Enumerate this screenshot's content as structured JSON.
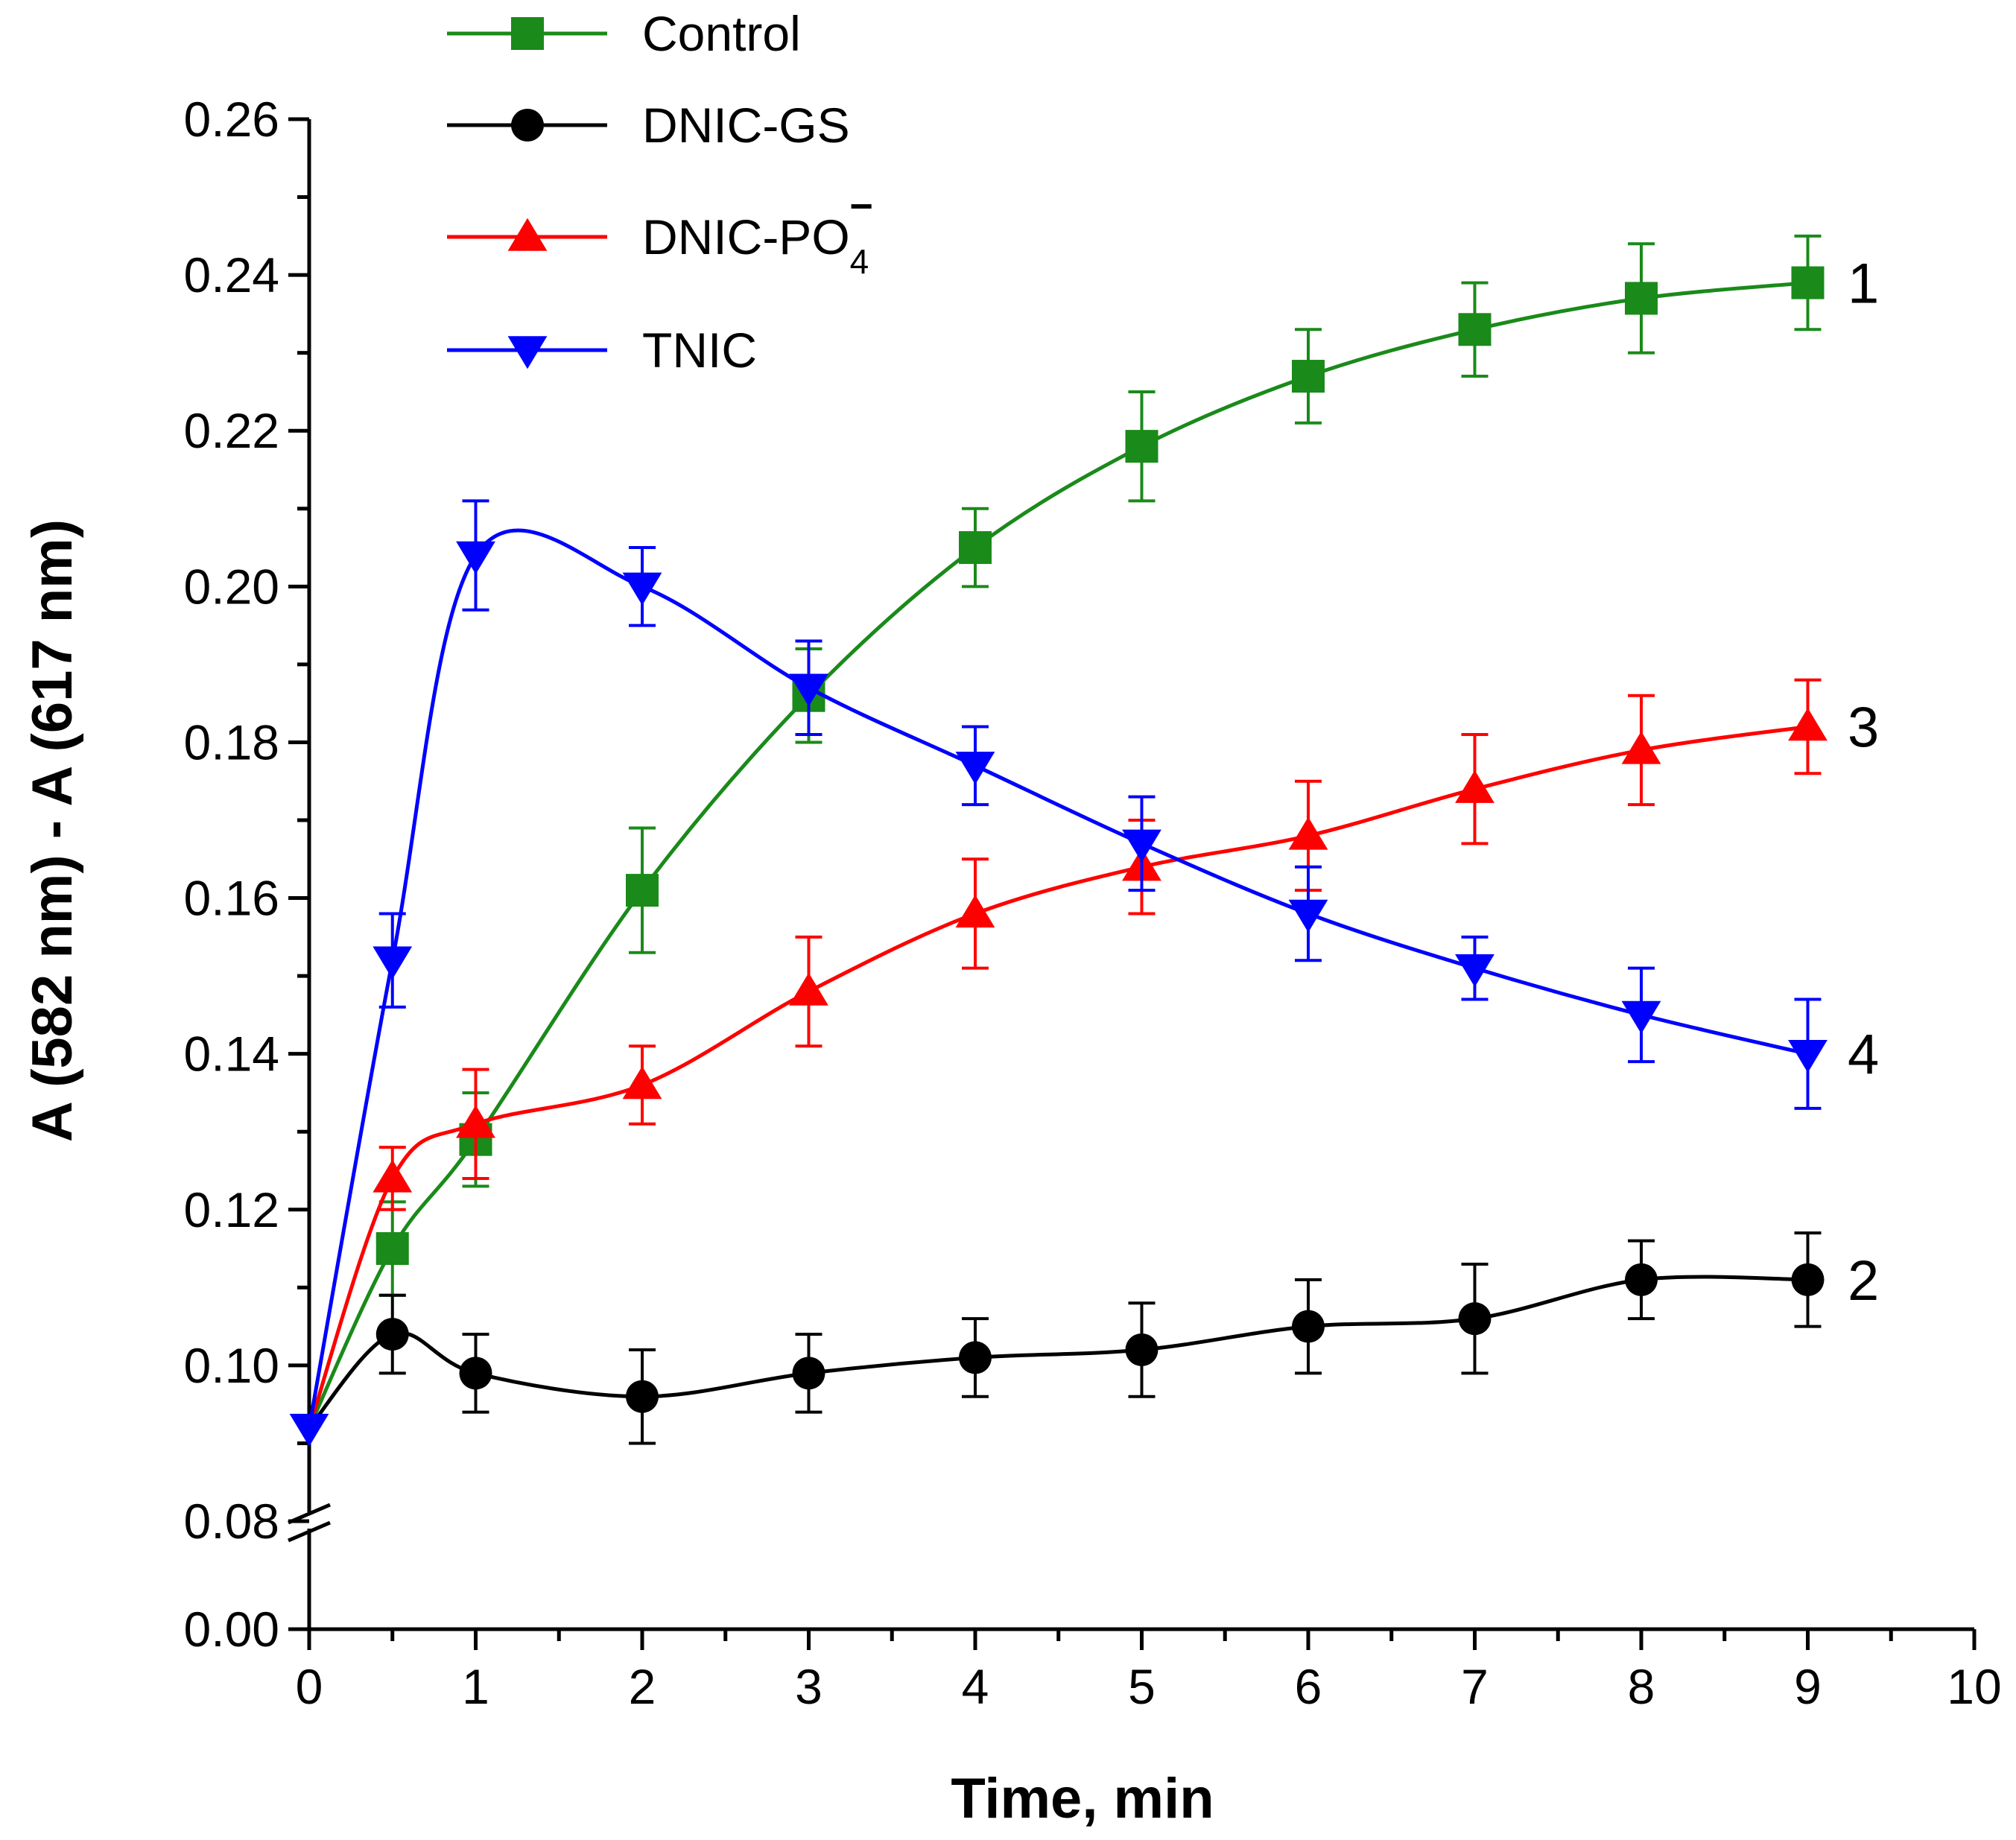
{
  "chart_data": {
    "type": "line",
    "title": "",
    "xlabel": "Time, min",
    "ylabel": "A (582 nm) - A (617 nm)",
    "xlim": [
      0,
      10
    ],
    "xticks": [
      "0",
      "1",
      "2",
      "3",
      "4",
      "5",
      "6",
      "7",
      "8",
      "9",
      "10"
    ],
    "ylim_lower": [
      0.0,
      0.08
    ],
    "ylim_upper": [
      0.08,
      0.26
    ],
    "yticks": [
      "0.00",
      "0.08",
      "0.10",
      "0.12",
      "0.14",
      "0.16",
      "0.18",
      "0.20",
      "0.22",
      "0.24",
      "0.26"
    ],
    "axis_break": "between 0.00 and 0.08",
    "legend_position": "top-center",
    "series": [
      {
        "name": "Control",
        "curve_label": "1",
        "color": "#1a8a1a",
        "marker": "square",
        "x": [
          0.5,
          1,
          2,
          3,
          4,
          5,
          6,
          7,
          8,
          9
        ],
        "values": [
          0.115,
          0.129,
          0.161,
          0.186,
          0.205,
          0.218,
          0.227,
          0.233,
          0.237,
          0.239
        ],
        "errors": [
          0.006,
          0.006,
          0.008,
          0.006,
          0.005,
          0.007,
          0.006,
          0.006,
          0.007,
          0.006
        ]
      },
      {
        "name": "DNIC-GS",
        "curve_label": "2",
        "color": "#000000",
        "marker": "circle",
        "x": [
          0.5,
          1,
          2,
          3,
          4,
          5,
          6,
          7,
          8,
          9
        ],
        "values": [
          0.104,
          0.099,
          0.096,
          0.099,
          0.101,
          0.102,
          0.105,
          0.106,
          0.111,
          0.111
        ],
        "errors": [
          0.005,
          0.005,
          0.006,
          0.005,
          0.005,
          0.006,
          0.006,
          0.007,
          0.005,
          0.006
        ]
      },
      {
        "name": "DNIC-PO4",
        "name_main": "DNIC-PO",
        "name_sub": "4",
        "name_sup": "−",
        "curve_label": "3",
        "color": "#ff0000",
        "marker": "triangle-up",
        "x": [
          0.5,
          1,
          2,
          3,
          4,
          5,
          6,
          7,
          8,
          9
        ],
        "values": [
          0.124,
          0.131,
          0.136,
          0.148,
          0.158,
          0.164,
          0.168,
          0.174,
          0.179,
          0.182
        ],
        "errors": [
          0.004,
          0.007,
          0.005,
          0.007,
          0.007,
          0.006,
          0.007,
          0.007,
          0.007,
          0.006
        ]
      },
      {
        "name": "TNIC",
        "curve_label": "4",
        "color": "#0000ff",
        "marker": "triangle-down",
        "x": [
          0.5,
          1,
          2,
          3,
          4,
          5,
          6,
          7,
          8,
          9
        ],
        "values": [
          0.152,
          0.204,
          0.2,
          0.187,
          0.177,
          0.167,
          0.158,
          0.151,
          0.145,
          0.14
        ],
        "errors": [
          0.006,
          0.007,
          0.005,
          0.006,
          0.005,
          0.006,
          0.006,
          0.004,
          0.006,
          0.007
        ]
      }
    ],
    "start_point": {
      "x": 0,
      "y": 0.092
    }
  }
}
